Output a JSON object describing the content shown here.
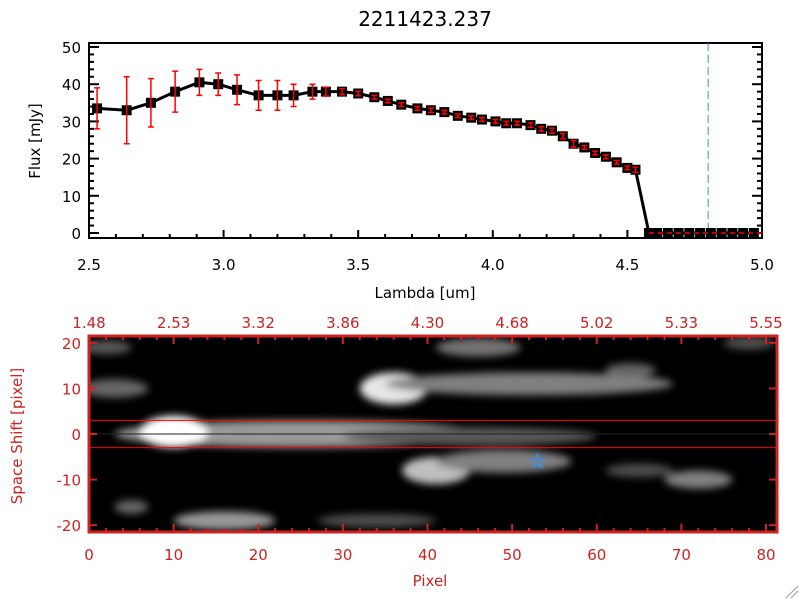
{
  "chart_data": [
    {
      "type": "scatter",
      "title": "2211423.237",
      "xlabel": "Lambda [um]",
      "ylabel": "Flux [mJy]",
      "xlim": [
        2.5,
        5.0
      ],
      "ylim": [
        0,
        50
      ],
      "xticks": [
        "2.5",
        "3.0",
        "3.5",
        "4.0",
        "4.5",
        "5.0"
      ],
      "yticks": [
        "0",
        "10",
        "20",
        "30",
        "40",
        "50"
      ],
      "series": [
        {
          "name": "flux",
          "x": [
            2.53,
            2.64,
            2.73,
            2.82,
            2.91,
            2.98,
            3.05,
            3.13,
            3.2,
            3.26,
            3.33,
            3.38,
            3.44,
            3.5,
            3.56,
            3.61,
            3.66,
            3.72,
            3.77,
            3.82,
            3.87,
            3.92,
            3.96,
            4.01,
            4.05,
            4.09,
            4.14,
            4.18,
            4.22,
            4.26,
            4.3,
            4.34,
            4.38,
            4.42,
            4.46,
            4.5,
            4.53,
            4.58,
            4.61,
            4.65,
            4.69,
            4.73,
            4.77,
            4.81,
            4.85,
            4.89,
            4.93,
            4.97
          ],
          "y": [
            33.5,
            33,
            35,
            38,
            40.5,
            40,
            38.5,
            37,
            37,
            37,
            38,
            38,
            38,
            37.5,
            36.5,
            35.5,
            34.5,
            33.5,
            33,
            32.5,
            31.5,
            31,
            30.5,
            30,
            29.5,
            29.5,
            29,
            28,
            27.5,
            26,
            24,
            23,
            21.5,
            20.5,
            19,
            17.5,
            17,
            0,
            0,
            0,
            0,
            0,
            0,
            0,
            0,
            0,
            0,
            0
          ],
          "err": [
            5.5,
            9,
            6.5,
            5.5,
            3.5,
            3,
            4,
            4,
            4,
            3,
            2,
            1.2,
            0.8,
            0.6,
            0.5,
            0.5,
            0.5,
            0.5,
            0.6,
            0.5,
            0.5,
            0.5,
            0.5,
            0.5,
            0.5,
            0.5,
            0.6,
            0.6,
            0.7,
            0.7,
            0.9,
            0.5,
            0.5,
            0.5,
            0.5,
            0.5,
            0.7,
            0,
            0,
            0,
            0,
            0,
            0,
            0,
            0,
            0,
            0,
            0
          ]
        }
      ],
      "vline_x": 4.8,
      "zero_line": 0,
      "colors": {
        "line": "#000000",
        "error": "#ff0000",
        "vline": "#3a8fe0",
        "zero": "#ff0000"
      }
    },
    {
      "type": "heatmap",
      "xlabel": "Pixel",
      "ylabel": "Space Shift [pixel]",
      "xlim": [
        0,
        81.3
      ],
      "ylim": [
        -21.5,
        21.5
      ],
      "xticks": [
        "0",
        "10",
        "20",
        "30",
        "40",
        "50",
        "60",
        "70",
        "80"
      ],
      "yticks": [
        "20",
        "10",
        "0",
        "-10",
        "-20"
      ],
      "top_ticks": [
        "1.48",
        "2.53",
        "3.32",
        "3.86",
        "4.30",
        "4.68",
        "5.02",
        "5.33",
        "5.55"
      ],
      "extraction_lines": [
        3,
        -3
      ],
      "center_line": 0,
      "star": {
        "pixel": 53,
        "shift": -6
      },
      "blobs": [
        {
          "x": 25,
          "y": 0,
          "rx": 22,
          "ry": 3,
          "v": 0.6
        },
        {
          "x": 10,
          "y": 0.5,
          "rx": 4,
          "ry": 3.5,
          "v": 1
        },
        {
          "x": 45,
          "y": -0.5,
          "rx": 15,
          "ry": 2,
          "v": 0.35
        },
        {
          "x": 36,
          "y": 10,
          "rx": 4,
          "ry": 3.5,
          "v": 0.9
        },
        {
          "x": 52,
          "y": 11,
          "rx": 17,
          "ry": 2.5,
          "v": 0.5
        },
        {
          "x": 46,
          "y": 19,
          "rx": 5,
          "ry": 2,
          "v": 0.45
        },
        {
          "x": 3,
          "y": 10,
          "rx": 4,
          "ry": 2,
          "v": 0.4
        },
        {
          "x": 2,
          "y": 19,
          "rx": 3,
          "ry": 1.5,
          "v": 0.35
        },
        {
          "x": 41,
          "y": -8,
          "rx": 4,
          "ry": 3,
          "v": 0.75
        },
        {
          "x": 49,
          "y": -6,
          "rx": 8,
          "ry": 2.5,
          "v": 0.5
        },
        {
          "x": 72,
          "y": -10,
          "rx": 4,
          "ry": 2,
          "v": 0.5
        },
        {
          "x": 65,
          "y": -8,
          "rx": 4,
          "ry": 1.5,
          "v": 0.3
        },
        {
          "x": 16,
          "y": -19,
          "rx": 6,
          "ry": 2,
          "v": 0.6
        },
        {
          "x": 5,
          "y": -16,
          "rx": 2,
          "ry": 1.5,
          "v": 0.4
        },
        {
          "x": 34,
          "y": -19,
          "rx": 7,
          "ry": 1.5,
          "v": 0.3
        },
        {
          "x": 78,
          "y": 20,
          "rx": 3,
          "ry": 1.5,
          "v": 0.3
        },
        {
          "x": 64,
          "y": 14,
          "rx": 3,
          "ry": 1.5,
          "v": 0.4
        }
      ],
      "colors": {
        "axis": "#cc2222",
        "lines": "#ff0000",
        "star": "#3a8fe0"
      }
    }
  ]
}
